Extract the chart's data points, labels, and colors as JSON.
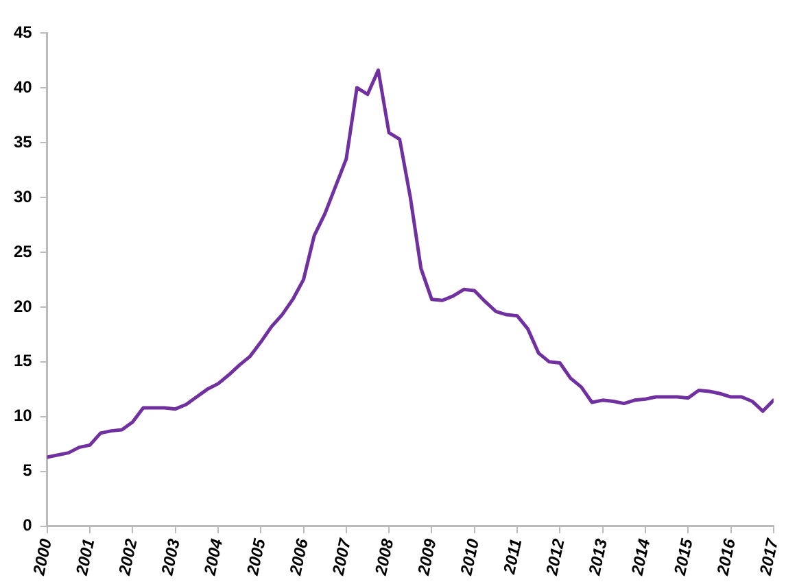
{
  "chart_data": {
    "type": "line",
    "x": [
      2000,
      2000.5,
      2000.75,
      2001,
      2001.25,
      2001.5,
      2001.75,
      2002,
      2002.25,
      2002.5,
      2002.75,
      2003,
      2003.25,
      2003.5,
      2003.75,
      2004,
      2004.25,
      2004.5,
      2004.75,
      2005,
      2005.25,
      2005.5,
      2005.75,
      2006,
      2006.25,
      2006.5,
      2006.75,
      2007,
      2007.25,
      2007.5,
      2007.75,
      2008,
      2008.25,
      2008.5,
      2008.75,
      2009,
      2009.25,
      2009.5,
      2009.75,
      2010,
      2010.25,
      2010.5,
      2010.75,
      2011,
      2011.25,
      2011.5,
      2011.75,
      2012,
      2012.25,
      2012.5,
      2012.75,
      2013,
      2013.25,
      2013.5,
      2013.75,
      2014,
      2014.25,
      2014.5,
      2014.75,
      2015,
      2015.25,
      2015.5,
      2015.75,
      2016,
      2016.25,
      2016.5,
      2016.75,
      2017
    ],
    "series": [
      {
        "color": "#7030a0",
        "values": [
          6.3,
          6.7,
          7.2,
          7.4,
          8.5,
          8.7,
          8.8,
          9.5,
          10.8,
          10.8,
          10.8,
          10.7,
          11.1,
          11.8,
          12.5,
          13.0,
          13.8,
          14.7,
          15.5,
          16.8,
          18.2,
          19.3,
          20.7,
          22.5,
          26.5,
          28.5,
          31.0,
          33.5,
          40.0,
          39.4,
          41.6,
          35.9,
          35.3,
          30.0,
          23.5,
          20.7,
          20.6,
          21.0,
          21.6,
          21.5,
          20.5,
          19.6,
          19.3,
          19.2,
          18.0,
          15.8,
          15.0,
          14.9,
          13.5,
          12.7,
          11.3,
          11.5,
          11.4,
          11.2,
          11.5,
          11.6,
          11.8,
          11.8,
          11.8,
          11.7,
          12.4,
          12.3,
          12.1,
          11.8,
          11.8,
          11.4,
          10.5,
          11.5
        ]
      }
    ],
    "xlim": [
      2000,
      2017
    ],
    "xticks": [
      2000,
      2001,
      2002,
      2003,
      2004,
      2005,
      2006,
      2007,
      2008,
      2009,
      2010,
      2011,
      2012,
      2013,
      2014,
      2015,
      2016,
      2017
    ],
    "ylim": [
      0,
      45
    ],
    "yticks": [
      0,
      5,
      10,
      15,
      20,
      25,
      30,
      35,
      40,
      45
    ],
    "grid": false,
    "legend": false,
    "marker": "none",
    "line_style": "solid"
  }
}
